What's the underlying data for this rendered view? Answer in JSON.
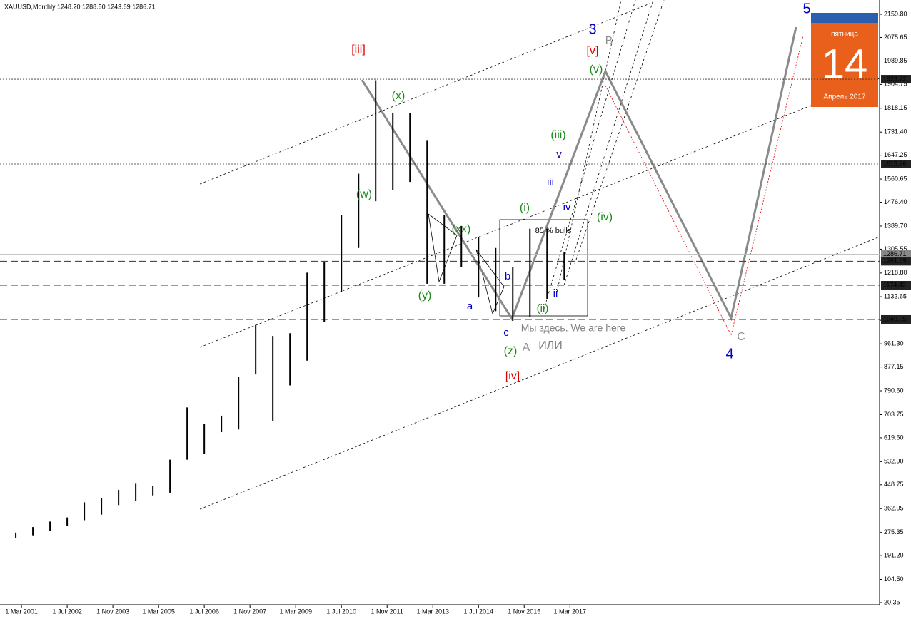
{
  "chart_data": {
    "type": "ohlc-range",
    "title": "XAUUSD,Monthly  1248.20 1288.50 1243.69 1286.71",
    "x": [
      2001.0,
      2001.5,
      2002.0,
      2002.5,
      2003.0,
      2003.5,
      2004.0,
      2004.5,
      2005.0,
      2005.5,
      2006.0,
      2006.5,
      2007.0,
      2007.5,
      2008.0,
      2008.5,
      2009.0,
      2009.5,
      2010.0,
      2010.5,
      2011.0,
      2011.5,
      2012.0,
      2012.5,
      2013.0,
      2013.5,
      2014.0,
      2014.5,
      2015.0,
      2015.5,
      2016.0,
      2016.5,
      2017.0
    ],
    "high": [
      275,
      295,
      315,
      330,
      385,
      400,
      430,
      455,
      445,
      540,
      730,
      670,
      700,
      840,
      1030,
      990,
      1000,
      1220,
      1260,
      1430,
      1580,
      1920,
      1800,
      1800,
      1700,
      1430,
      1390,
      1350,
      1310,
      1240,
      1380,
      1380,
      1295
    ],
    "low": [
      255,
      265,
      280,
      300,
      320,
      340,
      375,
      390,
      410,
      420,
      540,
      560,
      640,
      650,
      850,
      680,
      810,
      900,
      1040,
      1150,
      1310,
      1480,
      1520,
      1550,
      1180,
      1180,
      1240,
      1130,
      1080,
      1045,
      1060,
      1125,
      1195
    ],
    "color": "#000000",
    "xlim": [
      2000.54,
      2026.2
    ],
    "ylim": [
      7.4,
      2211.7
    ],
    "xticks": [
      {
        "value": 2001.167,
        "label": "1 Mar 2001"
      },
      {
        "value": 2002.5,
        "label": "1 Jul 2002"
      },
      {
        "value": 2003.833,
        "label": "1 Nov 2003"
      },
      {
        "value": 2005.167,
        "label": "1 Mar 2005"
      },
      {
        "value": 2006.5,
        "label": "1 Jul 2006"
      },
      {
        "value": 2007.833,
        "label": "1 Nov 2007"
      },
      {
        "value": 2009.167,
        "label": "1 Mar 2009"
      },
      {
        "value": 2010.5,
        "label": "1 Jul 2010"
      },
      {
        "value": 2011.833,
        "label": "1 Nov 2011"
      },
      {
        "value": 2013.167,
        "label": "1 Mar 2013"
      },
      {
        "value": 2014.5,
        "label": "1 Jul 2014"
      },
      {
        "value": 2015.833,
        "label": "1 Nov 2015"
      },
      {
        "value": 2017.167,
        "label": "1 Mar 2017"
      }
    ],
    "yticks": [
      {
        "value": 2159.8,
        "label": "2159.80"
      },
      2075.65,
      1989.85,
      1904.75,
      1818.15,
      {
        "value": 1731.4,
        "label": "1731.40"
      },
      1647.25,
      1560.65,
      {
        "value": 1476.4,
        "label": "1476.40"
      },
      {
        "value": 1389.7,
        "label": "1389.70"
      },
      1305.55,
      {
        "value": 1218.8,
        "label": "1218.80"
      },
      1132.65,
      1046.95,
      {
        "value": 961.3,
        "label": "961.30"
      },
      877.15,
      {
        "value": 790.6,
        "label": "790.60"
      },
      703.75,
      {
        "value": 619.6,
        "label": "619.60"
      },
      {
        "value": 532.9,
        "label": "532.90"
      },
      448.75,
      362.05,
      275.35,
      {
        "value": 191.2,
        "label": "191.20"
      },
      {
        "value": 104.5,
        "label": "104.50"
      },
      20.35
    ],
    "levels": [
      1923.72,
      1615.26,
      1286.71,
      1261.69,
      1174.42,
      1049.95
    ],
    "annotations": [
      {
        "text": "[iii]",
        "color": "#e00000"
      },
      {
        "text": "(x)",
        "color": "#1a8a1a"
      },
      {
        "text": "(w)",
        "color": "#1a8a1a"
      },
      {
        "text": "(y)",
        "color": "#1a8a1a"
      },
      {
        "text": "(xx)",
        "color": "#1a8a1a"
      },
      {
        "text": "a",
        "color": "#0000cc"
      },
      {
        "text": "b",
        "color": "#0000cc"
      },
      {
        "text": "c",
        "color": "#0000cc"
      },
      {
        "text": "(z)",
        "color": "#1a8a1a"
      },
      {
        "text": "A",
        "color": "#909090"
      },
      {
        "text": "[iv]",
        "color": "#e00000"
      },
      {
        "text": "Мы здесь. We are here",
        "color": "#808080"
      },
      {
        "text": "ИЛИ",
        "color": "#808080"
      },
      {
        "text": "(i)",
        "color": "#1a8a1a"
      },
      {
        "text": "(ii)",
        "color": "#1a8a1a"
      },
      {
        "text": "(iii)",
        "color": "#1a8a1a"
      },
      {
        "text": "(iv)",
        "color": "#1a8a1a"
      },
      {
        "text": "(v)",
        "color": "#1a8a1a"
      },
      {
        "text": "[v]",
        "color": "#e00000"
      },
      {
        "text": "3",
        "color": "#0000cc"
      },
      {
        "text": "B",
        "color": "#909090"
      },
      {
        "text": "i",
        "color": "#0000cc"
      },
      {
        "text": "ii",
        "color": "#0000cc"
      },
      {
        "text": "iii",
        "color": "#0000cc"
      },
      {
        "text": "iv",
        "color": "#0000cc"
      },
      {
        "text": "v",
        "color": "#0000cc"
      },
      {
        "text": "85 % bulls",
        "color": "#000000"
      },
      {
        "text": "C",
        "color": "#909090"
      },
      {
        "text": "4",
        "color": "#0000cc"
      },
      {
        "text": "5",
        "color": "#0000cc"
      }
    ],
    "calendar": {
      "weekday": "пятница",
      "day": "14",
      "month": "Апрель 2017"
    }
  }
}
